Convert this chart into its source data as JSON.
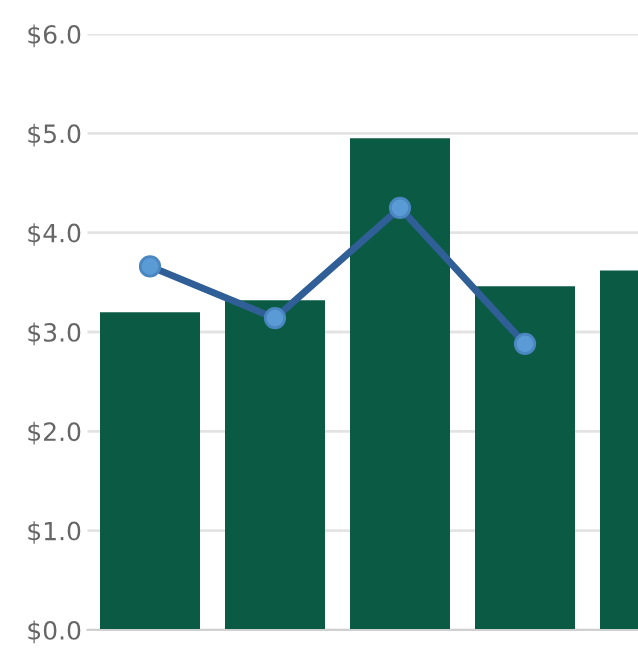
{
  "chart_data": {
    "type": "bar",
    "categories": [
      null,
      null,
      null,
      null,
      null
    ],
    "series": [
      {
        "color": "#0b5b44",
        "values": [
          3.2,
          3.32,
          4.95,
          3.46,
          3.62
        ]
      },
      {
        "type": "line",
        "color": "#2f5f96",
        "values": [
          3.66,
          3.14,
          4.25,
          2.88,
          null
        ],
        "marker": "circle",
        "line_style": "solid"
      }
    ],
    "ylim": [
      0,
      6
    ],
    "yticks": [
      {
        "value": 0,
        "label": "$0.0"
      },
      {
        "value": 1,
        "label": "$1.0"
      },
      {
        "value": 2,
        "label": "$2.0"
      },
      {
        "value": 3,
        "label": "$3.0"
      },
      {
        "value": 4,
        "label": "$4.0"
      },
      {
        "value": 5,
        "label": "$5.0"
      },
      {
        "value": 6,
        "label": "$6.0"
      }
    ],
    "grid": "y"
  }
}
